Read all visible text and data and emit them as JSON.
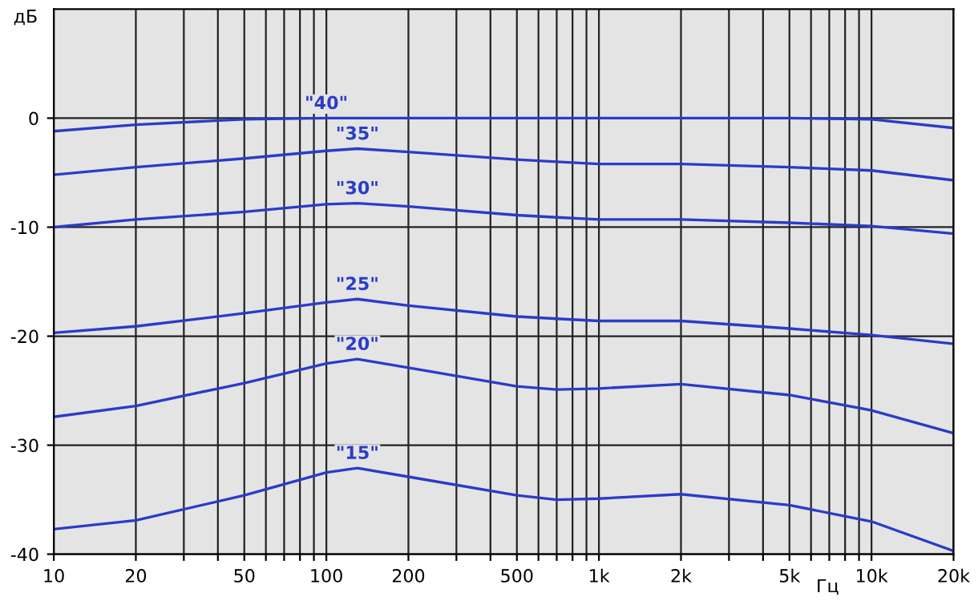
{
  "chart_data": {
    "type": "line",
    "xlabel": "Гц",
    "ylabel": "дБ",
    "log": "x",
    "grid": true,
    "legend": false,
    "xlim": [
      10,
      20000
    ],
    "ylim": [
      -40,
      10
    ],
    "xticks": [
      10,
      20,
      {
        "value": 30,
        "label": null
      },
      {
        "value": 40,
        "label": null
      },
      50,
      {
        "value": 60,
        "label": null
      },
      {
        "value": 70,
        "label": null
      },
      {
        "value": 80,
        "label": null
      },
      {
        "value": 90,
        "label": null
      },
      100,
      200,
      {
        "value": 300,
        "label": null
      },
      {
        "value": 400,
        "label": null
      },
      500,
      {
        "value": 600,
        "label": null
      },
      {
        "value": 700,
        "label": null
      },
      {
        "value": 800,
        "label": null
      },
      {
        "value": 900,
        "label": null
      },
      {
        "value": 1000,
        "label": "1k"
      },
      {
        "value": 2000,
        "label": "2k"
      },
      {
        "value": 3000,
        "label": null
      },
      {
        "value": 4000,
        "label": null
      },
      {
        "value": 5000,
        "label": "5k"
      },
      {
        "value": 6000,
        "label": null
      },
      {
        "value": 7000,
        "label": null
      },
      {
        "value": 8000,
        "label": null
      },
      {
        "value": 9000,
        "label": null
      },
      {
        "value": 10000,
        "label": "10k"
      },
      {
        "value": 20000,
        "label": "20k"
      }
    ],
    "yticks": [
      0,
      -10,
      -20,
      -30,
      -40
    ],
    "x": [
      10,
      20,
      50,
      100,
      130,
      200,
      500,
      700,
      1000,
      2000,
      5000,
      10000,
      20000
    ],
    "series": [
      {
        "name": "\"40\"",
        "color": "#2a3cc8",
        "values": [
          -1.2,
          -0.6,
          -0.1,
          0,
          0,
          0,
          0,
          0,
          0,
          0,
          0,
          -0.1,
          -0.9
        ]
      },
      {
        "name": "\"35\"",
        "color": "#2a3cc8",
        "values": [
          -5.2,
          -4.5,
          -3.7,
          -3.0,
          -2.8,
          -3.1,
          -3.8,
          -4.0,
          -4.2,
          -4.2,
          -4.5,
          -4.8,
          -5.7
        ]
      },
      {
        "name": "\"30\"",
        "color": "#2a3cc8",
        "values": [
          -10.0,
          -9.3,
          -8.6,
          -7.9,
          -7.8,
          -8.1,
          -8.9,
          -9.1,
          -9.3,
          -9.3,
          -9.6,
          -9.9,
          -10.6
        ]
      },
      {
        "name": "\"25\"",
        "color": "#2a3cc8",
        "values": [
          -19.7,
          -19.1,
          -17.9,
          -16.9,
          -16.6,
          -17.2,
          -18.2,
          -18.4,
          -18.6,
          -18.6,
          -19.3,
          -19.9,
          -20.7
        ]
      },
      {
        "name": "\"20\"",
        "color": "#2a3cc8",
        "values": [
          -27.4,
          -26.4,
          -24.3,
          -22.5,
          -22.1,
          -22.9,
          -24.6,
          -24.9,
          -24.8,
          -24.4,
          -25.4,
          -26.8,
          -28.9
        ]
      },
      {
        "name": "\"15\"",
        "color": "#2a3cc8",
        "values": [
          -37.7,
          -36.9,
          -34.6,
          -32.5,
          -32.1,
          -32.9,
          -34.6,
          -35.0,
          -34.9,
          -34.5,
          -35.5,
          -37.0,
          -39.7
        ]
      }
    ]
  }
}
